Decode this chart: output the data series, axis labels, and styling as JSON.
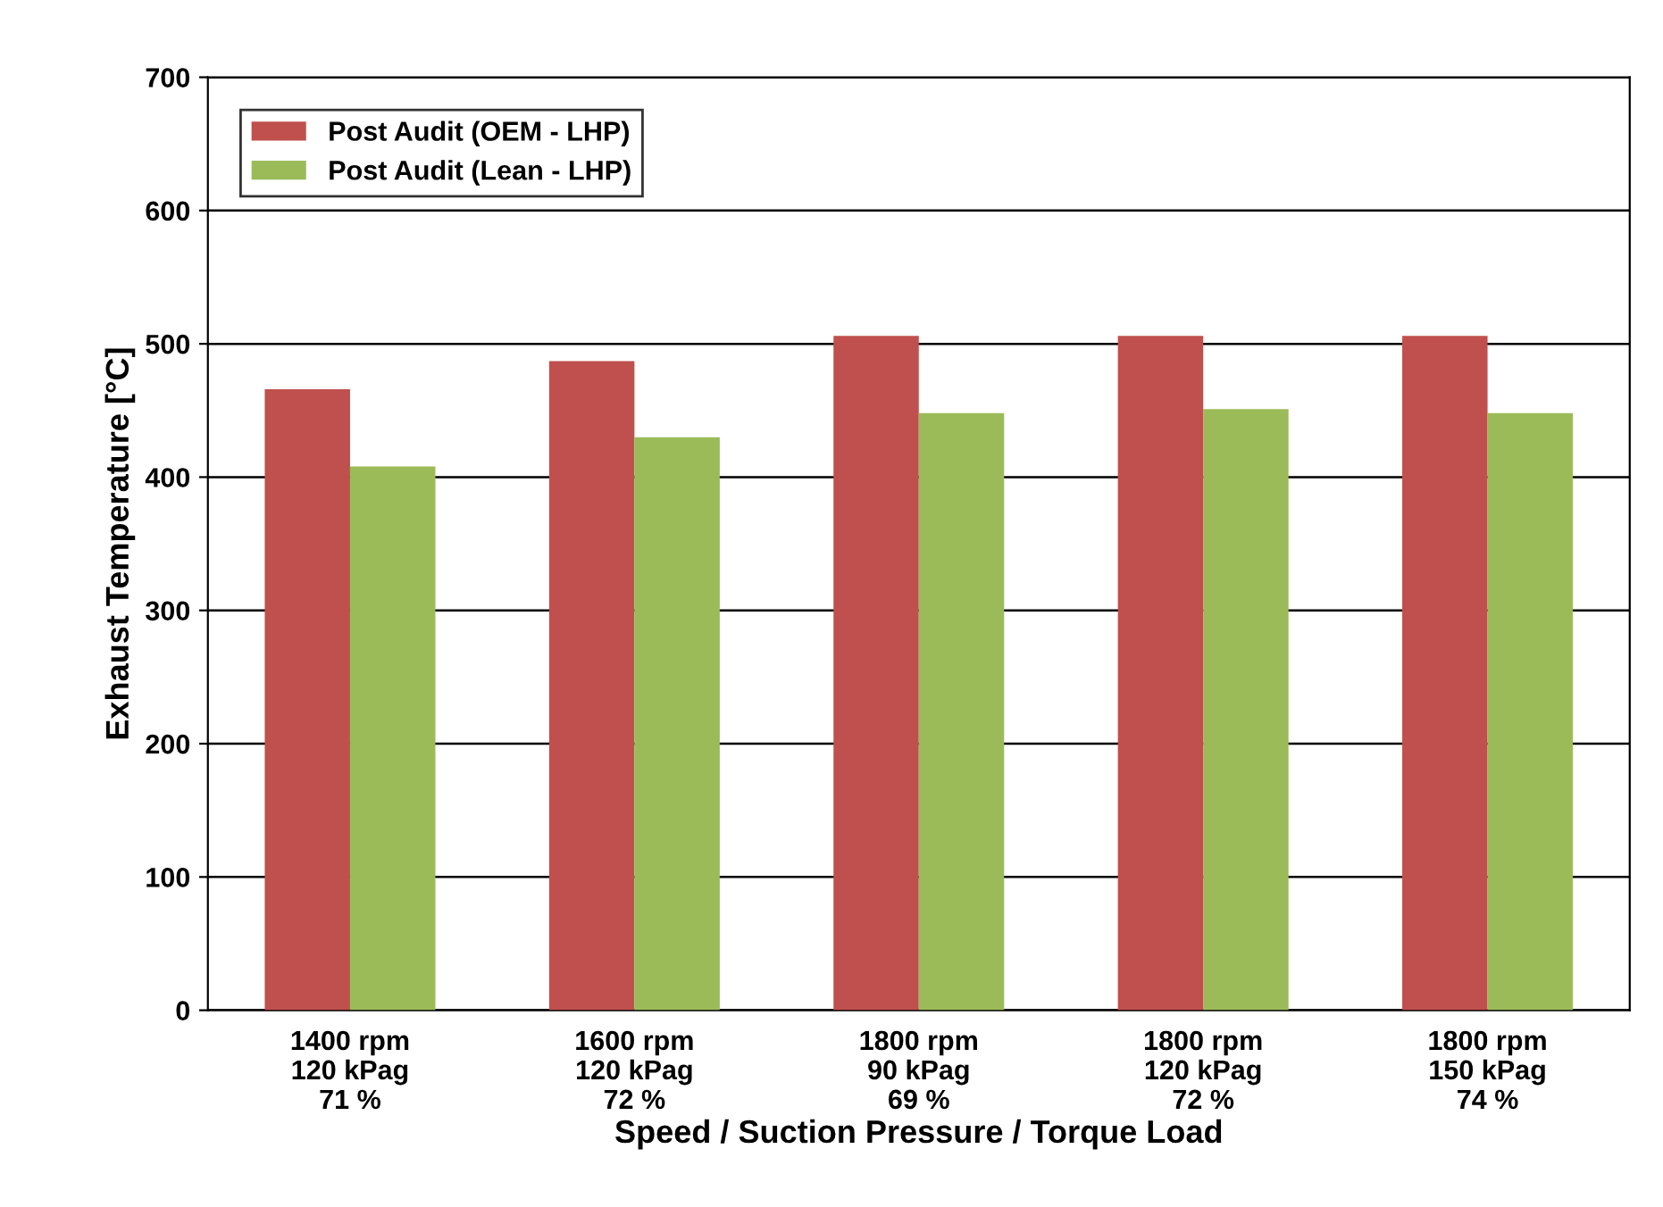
{
  "chart_data": {
    "type": "bar",
    "xlabel": "Speed / Suction Pressure / Torque Load",
    "ylabel": "Exhaust Temperature [°C]",
    "categories": [
      "1400 rpm\n120 kPag\n71 %",
      "1600 rpm\n120 kPag\n72 %",
      "1800 rpm\n90 kPag\n69 %",
      "1800 rpm\n120 kPag\n72 %",
      "1800 rpm\n150 kPag\n74 %"
    ],
    "series": [
      {
        "name": "Post Audit (OEM - LHP)",
        "color": "#c0504d",
        "values": [
          466,
          487,
          506,
          506,
          506
        ]
      },
      {
        "name": "Post Audit (Lean - LHP)",
        "color": "#9bbb59",
        "values": [
          408,
          430,
          448,
          451,
          448
        ]
      }
    ],
    "ylim": [
      0,
      700
    ],
    "yticks": [
      0,
      100,
      200,
      300,
      400,
      500,
      600,
      700
    ],
    "grid": "y",
    "legend": "top left"
  }
}
